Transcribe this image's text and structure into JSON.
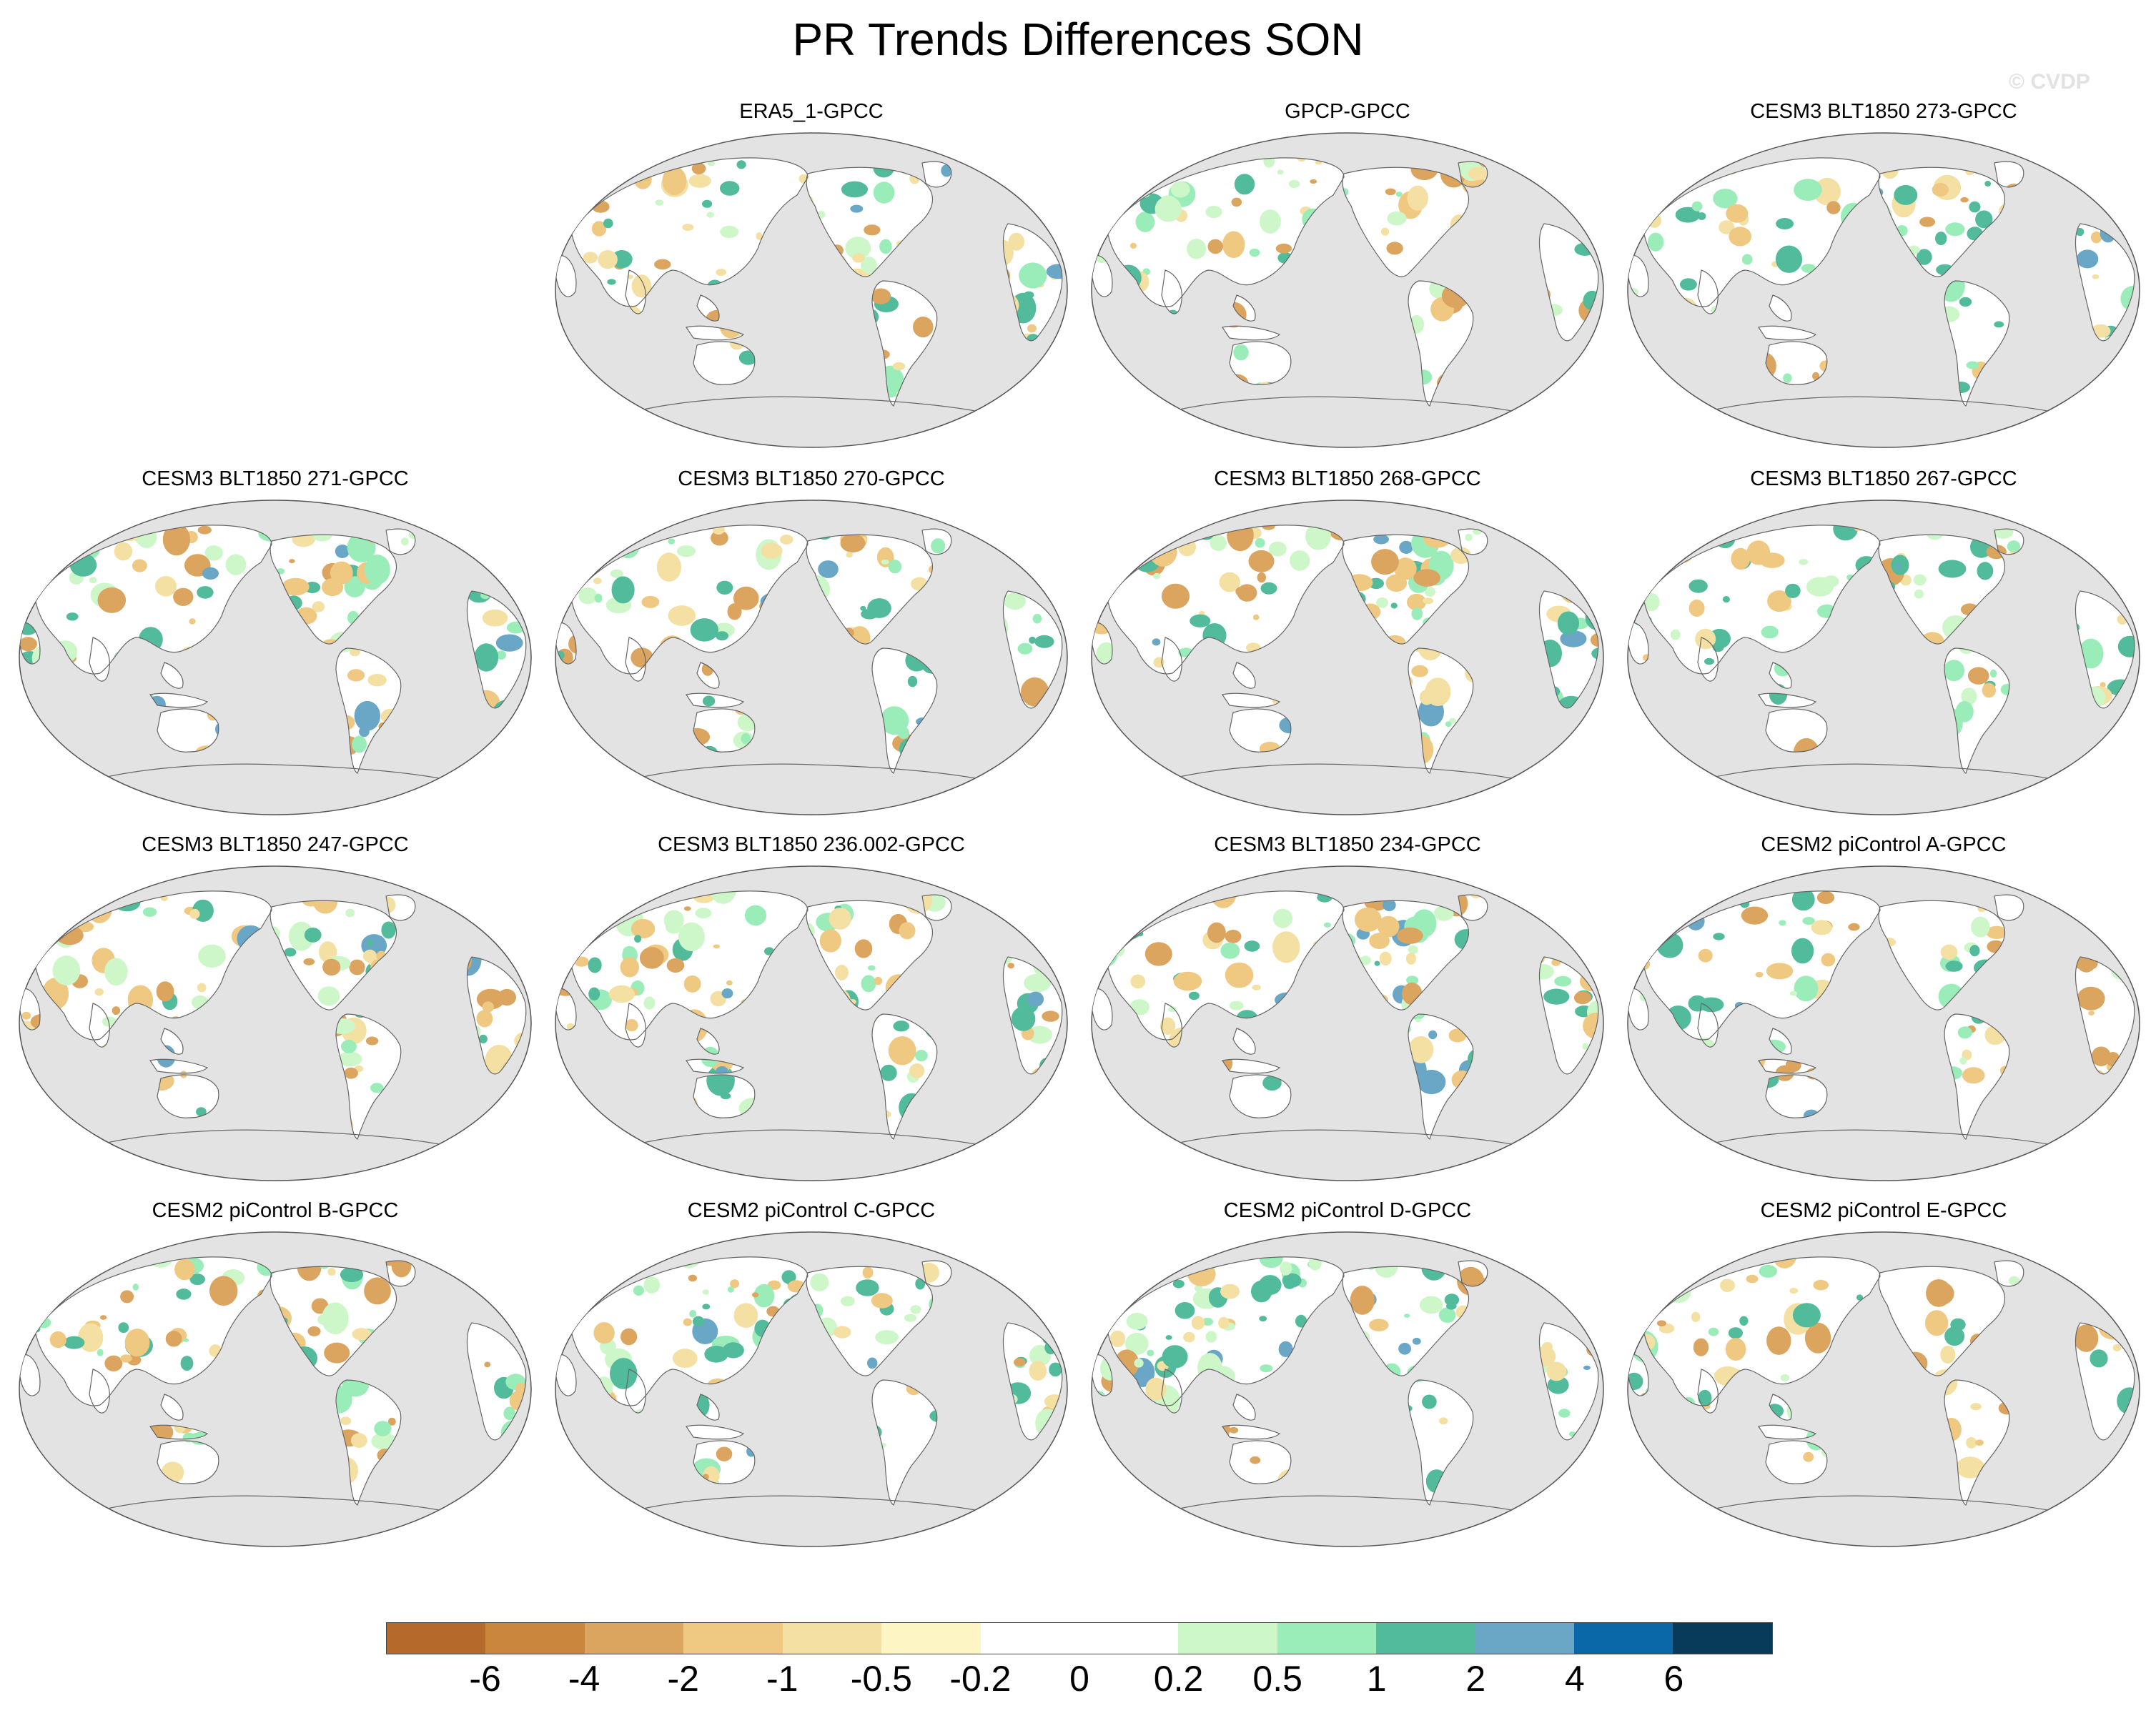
{
  "title": "PR Trends Differences SON",
  "watermark": "© CVDP",
  "panels": [
    {
      "label": "ERA5_1-GPCC",
      "style": "era"
    },
    {
      "label": "GPCP-GPCC",
      "style": "gpcp"
    },
    {
      "label": "CESM3 BLT1850 273-GPCC",
      "style": "a"
    },
    {
      "label": "CESM3 BLT1850 271-GPCC",
      "style": "b"
    },
    {
      "label": "CESM3 BLT1850 270-GPCC",
      "style": "a"
    },
    {
      "label": "CESM3 BLT1850 268-GPCC",
      "style": "b"
    },
    {
      "label": "CESM3 BLT1850 267-GPCC",
      "style": "a"
    },
    {
      "label": "CESM3 BLT1850 247-GPCC",
      "style": "c"
    },
    {
      "label": "CESM3 BLT1850 236.002-GPCC",
      "style": "b"
    },
    {
      "label": "CESM3 BLT1850 234-GPCC",
      "style": "wet"
    },
    {
      "label": "CESM2 piControl A-GPCC",
      "style": "a"
    },
    {
      "label": "CESM2 piControl B-GPCC",
      "style": "c"
    },
    {
      "label": "CESM2 piControl C-GPCC",
      "style": "b"
    },
    {
      "label": "CESM2 piControl D-GPCC",
      "style": "wet"
    },
    {
      "label": "CESM2 piControl E-GPCC",
      "style": "a"
    }
  ],
  "colorbar": {
    "colors": [
      "#b5692a",
      "#cb863e",
      "#dba45f",
      "#efc882",
      "#f4e0a3",
      "#fdf6c4",
      "#ffffff",
      "#ffffff",
      "#cdf7c9",
      "#9aedb8",
      "#52bb9c",
      "#6aa6c6",
      "#0a68a8",
      "#083b5a"
    ],
    "labels": [
      "-6",
      "-4",
      "-2",
      "-1",
      "-0.5",
      "-0.2",
      "0",
      "0.2",
      "0.5",
      "1",
      "2",
      "4",
      "6"
    ]
  }
}
